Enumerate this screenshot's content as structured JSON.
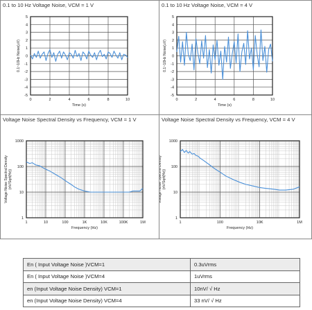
{
  "chart_data": [
    {
      "type": "line",
      "title": "0.1 to 10 Hz Voltage Noise, VCM = 1 V",
      "xlabel": "Time (s)",
      "ylabel": "0.1~10Hz Noise(uV)",
      "xlim": [
        0,
        10
      ],
      "ylim": [
        -5,
        5
      ],
      "xticks": [
        "0",
        "2",
        "4",
        "6",
        "8",
        "10"
      ],
      "yticks": [
        "5",
        "4",
        "3",
        "2",
        "1",
        "0",
        "-1",
        "-2",
        "-3",
        "-4",
        "-5"
      ],
      "line_color": "#4a90d9",
      "grid": true,
      "series": [
        {
          "x": [
            0,
            0.2,
            0.4,
            0.6,
            0.8,
            1.0,
            1.2,
            1.4,
            1.6,
            1.8,
            2.0,
            2.2,
            2.4,
            2.6,
            2.8,
            3.0,
            3.2,
            3.4,
            3.6,
            3.8,
            4.0,
            4.2,
            4.4,
            4.6,
            4.8,
            5.0,
            5.2,
            5.4,
            5.6,
            5.8,
            6.0,
            6.2,
            6.4,
            6.6,
            6.8,
            7.0,
            7.2,
            7.4,
            7.6,
            7.8,
            8.0,
            8.2,
            8.4,
            8.6,
            8.8,
            9.0,
            9.2,
            9.4,
            9.6,
            9.8,
            10.0
          ],
          "values": [
            0.1,
            -0.4,
            0.3,
            -0.2,
            0.6,
            -0.3,
            0.2,
            0.5,
            -0.6,
            0.3,
            0.8,
            -0.2,
            0.4,
            -0.7,
            0.2,
            0.6,
            -0.3,
            0.5,
            0.1,
            -0.5,
            0.4,
            0.2,
            -0.3,
            0.7,
            -0.1,
            0.3,
            -0.6,
            0.5,
            0.2,
            -0.4,
            0.6,
            0.1,
            -0.2,
            0.4,
            -0.5,
            0.3,
            0.7,
            -0.1,
            0.2,
            -0.4,
            0.5,
            0.3,
            -0.2,
            0.6,
            0.1,
            -0.3,
            0.4,
            -0.5,
            0.2,
            0.1,
            -0.2
          ]
        }
      ]
    },
    {
      "type": "line",
      "title": "0.1 to 10 Hz Voltage Noise, VCM = 4 V",
      "xlabel": "Time (s)",
      "ylabel": "0.1~10Hz Noise(uV)",
      "xlim": [
        0,
        10
      ],
      "ylim": [
        -5,
        5
      ],
      "xticks": [
        "0",
        "2",
        "4",
        "6",
        "8",
        "10"
      ],
      "yticks": [
        "5",
        "4",
        "3",
        "2",
        "1",
        "0",
        "-1",
        "-2",
        "-3",
        "-4",
        "-5"
      ],
      "line_color": "#4a90d9",
      "grid": true,
      "series": [
        {
          "x": [
            0,
            0.2,
            0.4,
            0.6,
            0.8,
            1.0,
            1.2,
            1.4,
            1.6,
            1.8,
            2.0,
            2.2,
            2.4,
            2.6,
            2.8,
            3.0,
            3.2,
            3.4,
            3.6,
            3.8,
            4.0,
            4.2,
            4.4,
            4.6,
            4.8,
            5.0,
            5.2,
            5.4,
            5.6,
            5.8,
            6.0,
            6.2,
            6.4,
            6.6,
            6.8,
            7.0,
            7.2,
            7.4,
            7.6,
            7.8,
            8.0,
            8.2,
            8.4,
            8.6,
            8.8,
            9.0,
            9.2,
            9.4,
            9.6,
            9.8,
            10.0
          ],
          "values": [
            0.5,
            2.5,
            -0.8,
            1.8,
            -1.2,
            3.0,
            0.2,
            -0.6,
            1.5,
            -1.8,
            2.2,
            0.4,
            -1.0,
            1.9,
            -0.3,
            2.6,
            -1.5,
            0.8,
            -2.2,
            1.4,
            -0.5,
            2.0,
            -1.2,
            0.6,
            -3.0,
            1.2,
            -0.8,
            2.4,
            -1.6,
            0.3,
            1.8,
            -0.9,
            2.8,
            -2.0,
            0.5,
            1.6,
            -1.1,
            3.2,
            -0.4,
            1.0,
            -1.8,
            2.6,
            0.2,
            -1.4,
            3.3,
            -0.6,
            1.2,
            -2.1,
            0.8,
            1.5,
            -0.7
          ]
        }
      ]
    },
    {
      "type": "line",
      "title": "Voltage Noise Spectral Density vs Frequency, VCM = 1 V",
      "xlabel": "Frequency (Hz)",
      "ylabel": "Voltage Noise Spectral Density (nV/Sqrt(Hz))",
      "xscale": "log",
      "yscale": "log",
      "xlim": [
        1,
        1000000
      ],
      "ylim": [
        1,
        1000
      ],
      "xticks": [
        "1",
        "10",
        "100",
        "1K",
        "10K",
        "100K",
        "1M"
      ],
      "yticks": [
        "1000",
        "100",
        "10",
        "1"
      ],
      "line_color": "#4a90d9",
      "grid": true,
      "series": [
        {
          "x": [
            1,
            1.5,
            2,
            3,
            5,
            7,
            10,
            15,
            20,
            30,
            50,
            70,
            100,
            150,
            200,
            300,
            500,
            700,
            1000,
            2000,
            5000,
            10000,
            20000,
            50000,
            100000,
            200000,
            300000,
            500000,
            700000,
            1000000
          ],
          "values": [
            150,
            130,
            140,
            115,
            105,
            90,
            78,
            68,
            60,
            50,
            40,
            34,
            28,
            23,
            20,
            16,
            13,
            12,
            11,
            10,
            10,
            10,
            10,
            10,
            10,
            10,
            11,
            11,
            11,
            14
          ]
        }
      ]
    },
    {
      "type": "line",
      "title": "Voltage Noise Spectral Density vs Frequency, VCM = 4 V",
      "xlabel": "Frequency (Hz)",
      "ylabel": "Voltage Noise Spectral Density (nV/Sqrt(Hz))",
      "xscale": "log",
      "yscale": "log",
      "xlim": [
        1,
        1000000
      ],
      "ylim": [
        1,
        1000
      ],
      "xticks": [
        "1",
        "100",
        "10K",
        "1M"
      ],
      "yticks": [
        "1000",
        "100",
        "10",
        "1"
      ],
      "line_color": "#4a90d9",
      "grid": true,
      "series": [
        {
          "x": [
            1,
            1.3,
            1.6,
            2,
            2.5,
            3,
            4,
            5,
            6,
            8,
            10,
            15,
            20,
            30,
            50,
            100,
            200,
            500,
            1000,
            2000,
            5000,
            10000,
            20000,
            50000,
            100000,
            200000,
            500000,
            1000000
          ],
          "values": [
            380,
            460,
            350,
            420,
            330,
            380,
            300,
            320,
            270,
            250,
            210,
            170,
            145,
            115,
            85,
            60,
            42,
            30,
            24,
            20,
            17,
            15,
            14,
            13,
            12,
            12,
            13,
            16
          ]
        }
      ]
    }
  ],
  "summary_table": [
    [
      "En ( Input Voltage Noise )VCM=1",
      "0.3uVrms"
    ],
    [
      "En ( Input Voltage Noise )VCM=4",
      "1uVrms"
    ],
    [
      "en (Input Voltage Noise Density) VCM=1",
      "10nV/ √ Hz"
    ],
    [
      "en (Input Voltage Noise Density) VCM=4",
      "33 nV/ √ Hz"
    ]
  ]
}
